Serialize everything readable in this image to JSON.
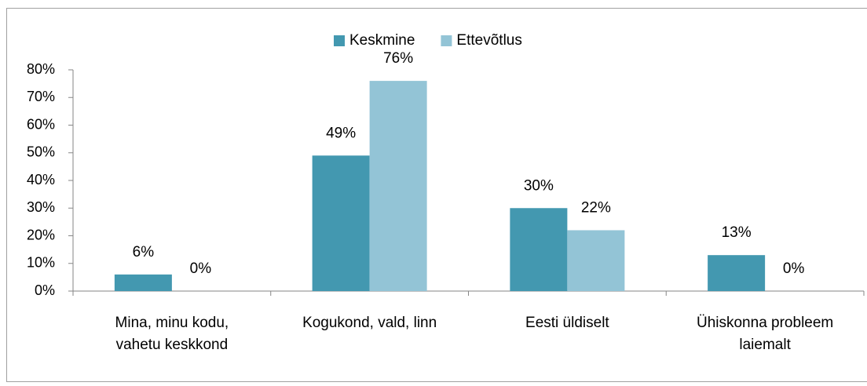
{
  "chart_data": {
    "type": "bar",
    "categories": [
      [
        "Mina, minu kodu,",
        "vahetu keskkond"
      ],
      [
        "Kogukond, vald, linn"
      ],
      [
        "Eesti üldiselt"
      ],
      [
        "Ühiskonna probleem",
        "laiemalt"
      ]
    ],
    "series": [
      {
        "name": "Keskmine",
        "color": "#4398b0",
        "values": [
          6,
          49,
          30,
          13
        ],
        "value_labels": [
          "6%",
          "49%",
          "30%",
          "13%"
        ]
      },
      {
        "name": "Ettevõtlus",
        "color": "#93c4d6",
        "values": [
          0,
          76,
          22,
          0
        ],
        "value_labels": [
          "0%",
          "76%",
          "22%",
          "0%"
        ]
      }
    ],
    "ylim": [
      0,
      80
    ],
    "yticks": [
      {
        "value": 0,
        "label": "0%"
      },
      {
        "value": 10,
        "label": "10%"
      },
      {
        "value": 20,
        "label": "20%"
      },
      {
        "value": 30,
        "label": "30%"
      },
      {
        "value": 40,
        "label": "40%"
      },
      {
        "value": 50,
        "label": "50%"
      },
      {
        "value": 60,
        "label": "60%"
      },
      {
        "value": 70,
        "label": "70%"
      },
      {
        "value": 80,
        "label": "80%"
      }
    ],
    "legend": "top"
  }
}
